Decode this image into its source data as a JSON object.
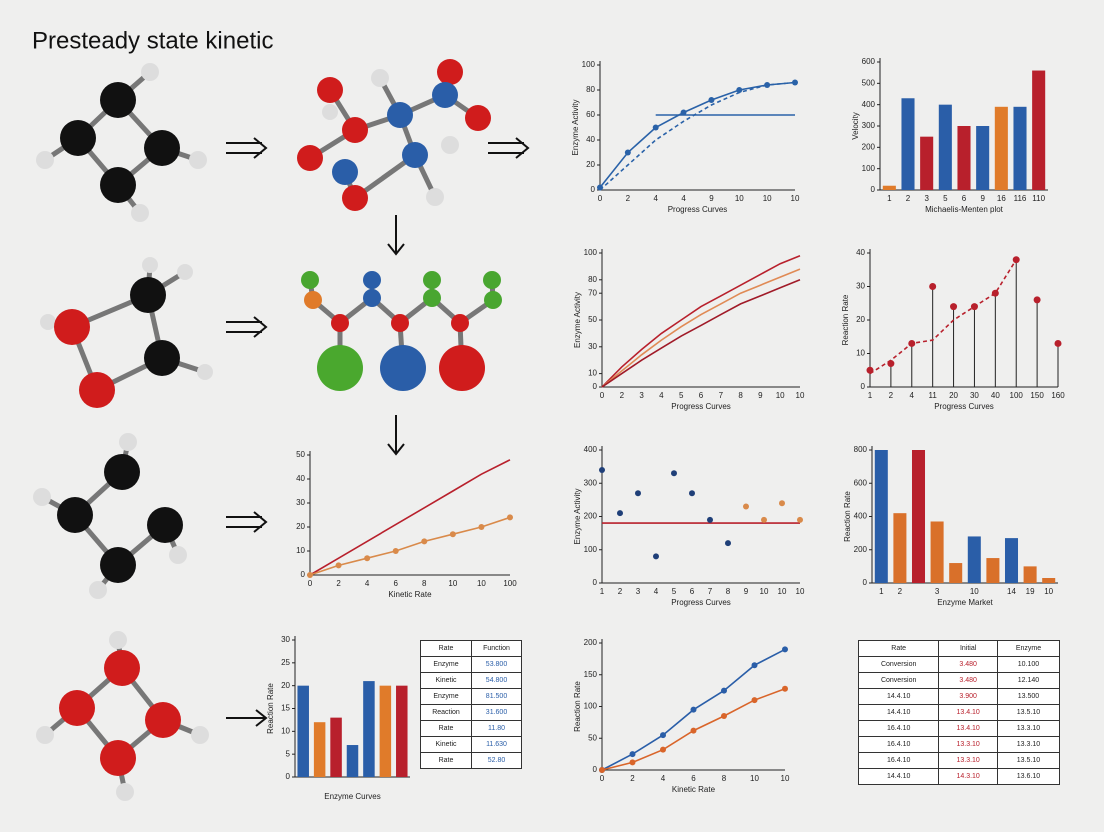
{
  "title": "Presteady state kinetic",
  "chart_data": [
    {
      "type": "line",
      "ylabel": "Enzyme Activity",
      "xlabel": "Progress Curves",
      "categories": [
        "0",
        "2",
        "4",
        "4",
        "9",
        "10",
        "10",
        "10"
      ],
      "ylim": [
        0,
        100
      ],
      "yticks": [
        0,
        20,
        40,
        60,
        80,
        100
      ],
      "series": [
        {
          "color": "#2a62a8",
          "markers": true,
          "values": [
            2,
            30,
            50,
            62,
            72,
            80,
            84,
            86
          ]
        },
        {
          "color": "#2a62a8",
          "dashed": true,
          "values": [
            0,
            20,
            40,
            55,
            68,
            78,
            84,
            86
          ]
        },
        {
          "color": "#2a62a8",
          "values": [
            null,
            null,
            60,
            60,
            60,
            60,
            60,
            60
          ]
        }
      ]
    },
    {
      "type": "bar",
      "ylabel": "Velocity",
      "xlabel": "Michaelis-Menten plot",
      "categories": [
        "1",
        "2",
        "3",
        "5",
        "6",
        "9",
        "16",
        "116",
        "110"
      ],
      "ylim": [
        0,
        600
      ],
      "yticks": [
        0,
        100,
        200,
        300,
        400,
        500,
        600
      ],
      "series": [
        {
          "colors": [
            "#e07b2a",
            "#2a5ea8",
            "#b8202c",
            "#2a5ea8",
            "#b8202c",
            "#2a5ea8",
            "#e07b2a",
            "#2a5ea8",
            "#b8202c"
          ],
          "values": [
            20,
            430,
            250,
            400,
            300,
            300,
            390,
            390,
            560
          ]
        }
      ]
    },
    {
      "type": "line",
      "ylabel": "Enzyme Activity",
      "xlabel": "Progress Curves",
      "categories": [
        "0",
        "2",
        "3",
        "4",
        "5",
        "6",
        "7",
        "8",
        "9",
        "10",
        "10"
      ],
      "ylim": [
        0,
        100
      ],
      "yticks": [
        0,
        10,
        30,
        50,
        70,
        80,
        100
      ],
      "series": [
        {
          "color": "#b8202c",
          "values": [
            0,
            15,
            28,
            40,
            50,
            60,
            68,
            76,
            84,
            92,
            98
          ]
        },
        {
          "color": "#e08a55",
          "values": [
            0,
            12,
            24,
            35,
            45,
            54,
            62,
            70,
            76,
            82,
            88
          ]
        },
        {
          "color": "#a01a28",
          "values": [
            0,
            10,
            20,
            29,
            38,
            46,
            54,
            62,
            68,
            74,
            80
          ]
        }
      ]
    },
    {
      "type": "stem",
      "ylabel": "Reaction Rate",
      "xlabel": "Progress Curves",
      "categories": [
        "1",
        "2",
        "4",
        "11",
        "20",
        "30",
        "40",
        "100",
        "150",
        "160"
      ],
      "ylim": [
        0,
        40
      ],
      "yticks": [
        0,
        10,
        20,
        30,
        40
      ],
      "series": [
        {
          "color": "#b8202c",
          "stem": true,
          "values": [
            5,
            7,
            13,
            30,
            24,
            24,
            28,
            38,
            26,
            13
          ]
        },
        {
          "color": "#b8202c",
          "dashed": true,
          "values": [
            4,
            8,
            13,
            14,
            20,
            24,
            28,
            38,
            null,
            null
          ]
        }
      ]
    },
    {
      "type": "line",
      "xlabel": "Kinetic Rate",
      "categories": [
        "0",
        "2",
        "4",
        "6",
        "8",
        "10",
        "10",
        "100"
      ],
      "ylim": [
        0,
        50
      ],
      "yticks": [
        0,
        10,
        20,
        30,
        40,
        50
      ],
      "series": [
        {
          "color": "#b8202c",
          "values": [
            0,
            7,
            14,
            21,
            28,
            35,
            42,
            48
          ]
        },
        {
          "color": "#d98a4a",
          "markers": true,
          "values": [
            0,
            4,
            7,
            10,
            14,
            17,
            20,
            24
          ]
        }
      ]
    },
    {
      "type": "line",
      "ylabel": "Enzyme Activity",
      "xlabel": "Progress Curves",
      "categories": [
        "1",
        "2",
        "3",
        "4",
        "5",
        "6",
        "7",
        "8",
        "9",
        "10",
        "10",
        "10"
      ],
      "ylim": [
        0,
        400
      ],
      "yticks": [
        0,
        100,
        200,
        300,
        400
      ],
      "series": [
        {
          "color": "#b8202c",
          "values": [
            180,
            180,
            180,
            180,
            180,
            180,
            180,
            180,
            180,
            180,
            180,
            180
          ]
        },
        {
          "color": "#1f3f78",
          "line": false,
          "markers": true,
          "values": [
            340,
            210,
            270,
            80,
            330,
            270,
            190,
            120,
            null,
            null,
            null,
            null
          ]
        },
        {
          "color": "#d98a4a",
          "line": false,
          "markers": true,
          "values": [
            null,
            null,
            null,
            null,
            null,
            null,
            null,
            null,
            230,
            190,
            240,
            190
          ]
        }
      ]
    },
    {
      "type": "bar",
      "ylabel": "Reaction Rate",
      "xlabel": "Enzyme Market",
      "categories": [
        "1",
        "2",
        null,
        "3",
        null,
        "10",
        null,
        "14",
        "19",
        "10"
      ],
      "ylim": [
        0,
        800
      ],
      "yticks": [
        0,
        200,
        400,
        600,
        800
      ],
      "series": [
        {
          "colors": [
            "#2a5ea8",
            "#d9702a",
            "#b8202c",
            "#d9702a",
            "#d9702a",
            "#2a5ea8",
            "#d9702a",
            "#2a5ea8",
            "#d9702a",
            "#d9702a"
          ],
          "values": [
            800,
            420,
            800,
            370,
            120,
            280,
            150,
            270,
            100,
            30
          ]
        }
      ]
    },
    {
      "type": "bar",
      "ylabel": "Reaction Rate",
      "xlabel": "Enzyme Curves",
      "categories": [
        null,
        null,
        null,
        null,
        null,
        null,
        null
      ],
      "ylim": [
        0,
        30
      ],
      "yticks": [
        0,
        5,
        10,
        15,
        20,
        25,
        30
      ],
      "series": [
        {
          "colors": [
            "#2a5ea8",
            "#e07b2a",
            "#b8202c",
            "#2a5ea8",
            "#2a5ea8",
            "#e07b2a",
            "#b8202c"
          ],
          "values": [
            20,
            12,
            13,
            7,
            21,
            20,
            20
          ]
        }
      ]
    },
    {
      "type": "line",
      "ylabel": "Reaction Rate",
      "xlabel": "Kinetic Rate",
      "categories": [
        "0",
        "2",
        "4",
        "6",
        "8",
        "10",
        "10"
      ],
      "ylim": [
        0,
        200
      ],
      "yticks": [
        0,
        50,
        100,
        150,
        200
      ],
      "series": [
        {
          "color": "#2a5ea8",
          "markers": true,
          "values": [
            0,
            25,
            55,
            95,
            125,
            165,
            190
          ]
        },
        {
          "color": "#d9652a",
          "markers": true,
          "values": [
            0,
            12,
            32,
            62,
            85,
            110,
            128
          ]
        }
      ]
    }
  ],
  "tables": [
    {
      "header": [
        "Rate",
        "Function"
      ],
      "rows": [
        [
          "Enzyme",
          "53.800"
        ],
        [
          "Kinetic",
          "54.800"
        ],
        [
          "Enzyme",
          "81.500"
        ],
        [
          "Reaction",
          "31.600"
        ],
        [
          "Rate",
          "11.80"
        ],
        [
          "Kinetic",
          "11.630"
        ],
        [
          "Rate",
          "52.80"
        ]
      ]
    },
    {
      "header": [
        "Rate",
        "Initial",
        "Enzyme"
      ],
      "rows": [
        [
          "Conversion",
          "3.480",
          "10.100"
        ],
        [
          "Conversion",
          "3.480",
          "12.140"
        ],
        [
          "14.4.10",
          "3.900",
          "13.500"
        ],
        [
          "14.4.10",
          "13.4.10",
          "13.5.10"
        ],
        [
          "16.4.10",
          "13.4.10",
          "13.3.10"
        ],
        [
          "16.4.10",
          "13.3.10",
          "13.3.10"
        ],
        [
          "16.4.10",
          "13.3.10",
          "13.5.10"
        ],
        [
          "14.4.10",
          "14.3.10",
          "13.6.10"
        ]
      ]
    }
  ]
}
